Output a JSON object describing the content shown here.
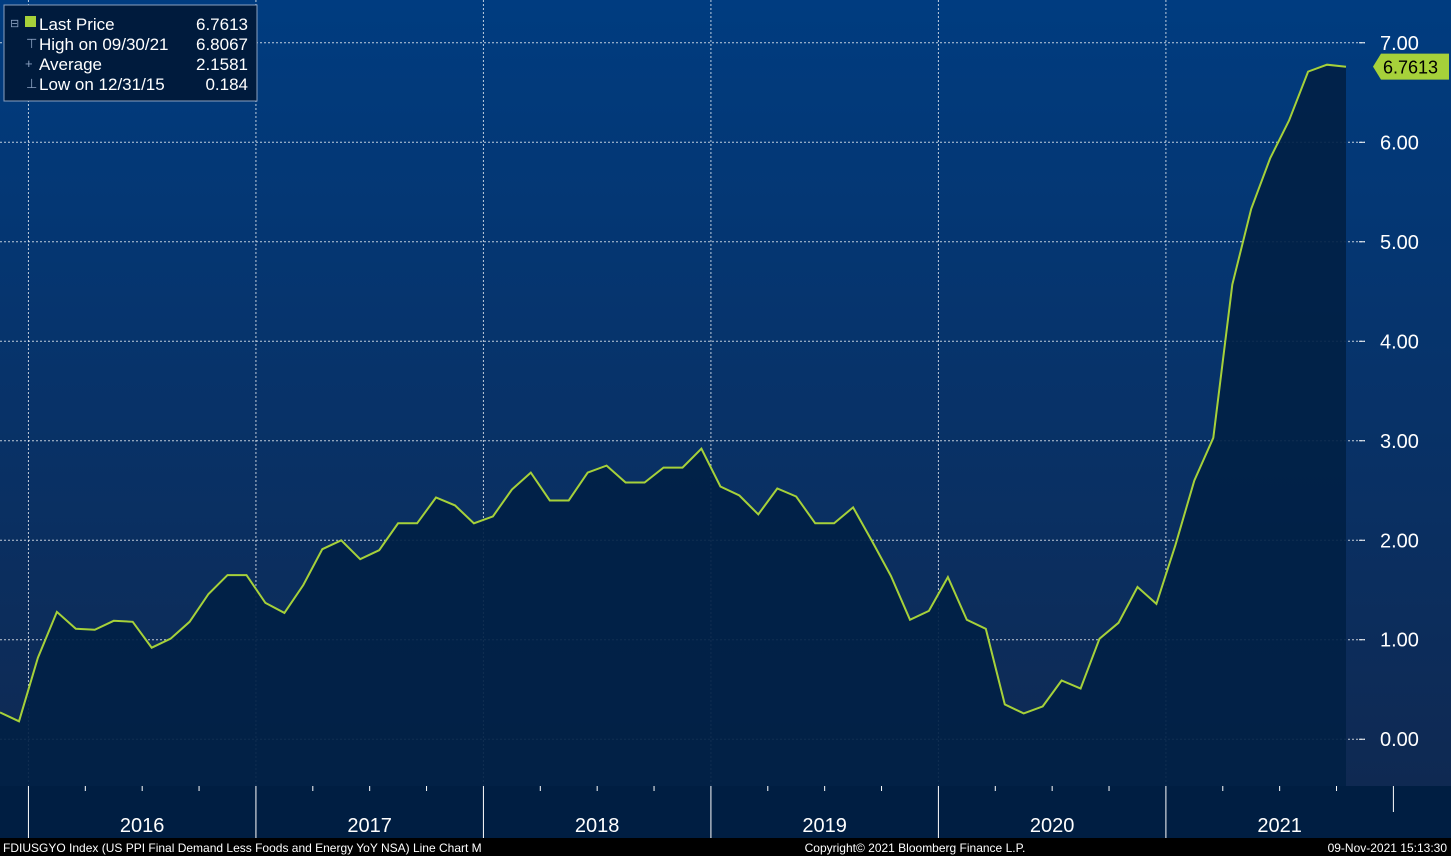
{
  "legend": {
    "items": [
      {
        "label": "Last Price",
        "value": "6.7613"
      },
      {
        "label": "High on 09/30/21",
        "value": "6.8067"
      },
      {
        "label": "Average",
        "value": "2.1581"
      },
      {
        "label": "Low on 12/31/15",
        "value": "0.184"
      }
    ]
  },
  "last_value_label": "6.7613",
  "footer": {
    "left": "FDIUSGYO Index (US PPI Final Demand Less Foods and Energy YoY NSA) Line Chart  M",
    "center": "Copyright© 2021 Bloomberg Finance L.P.",
    "right": "09-Nov-2021 15:13:30"
  },
  "colors": {
    "line": "#a6d13a",
    "last_label_bg": "#a6d13a",
    "plot_top": "#003c80",
    "plot_bottom": "#0f2952",
    "area_fill": "#012145",
    "axis_bg": "#001e42",
    "footer_bg": "#000000"
  },
  "chart_data": {
    "type": "area",
    "title": "",
    "xlabel": "",
    "ylabel": "",
    "frequency": "monthly",
    "x_start": "2015-11",
    "x_end": "2021-10",
    "x_tick_labels": [
      "2016",
      "2017",
      "2018",
      "2019",
      "2020",
      "2021"
    ],
    "y_tick_labels": [
      "0.00",
      "1.00",
      "2.00",
      "3.00",
      "4.00",
      "5.00",
      "6.00",
      "7.00"
    ],
    "ylim": [
      -0.47,
      7.43
    ],
    "grid": true,
    "legend_position": "top-left",
    "series": [
      {
        "name": "Last Price",
        "values": [
          0.27,
          0.18,
          0.82,
          1.28,
          1.11,
          1.1,
          1.19,
          1.18,
          0.92,
          1.01,
          1.18,
          1.46,
          1.65,
          1.65,
          1.37,
          1.27,
          1.55,
          1.91,
          2.0,
          1.81,
          1.9,
          2.17,
          2.17,
          2.43,
          2.35,
          2.17,
          2.24,
          2.51,
          2.68,
          2.4,
          2.4,
          2.68,
          2.75,
          2.58,
          2.58,
          2.73,
          2.73,
          2.92,
          2.54,
          2.45,
          2.26,
          2.52,
          2.44,
          2.17,
          2.17,
          2.33,
          1.99,
          1.64,
          1.2,
          1.29,
          1.63,
          1.2,
          1.11,
          0.35,
          0.26,
          0.33,
          0.59,
          0.51,
          1.01,
          1.17,
          1.53,
          1.36,
          1.95,
          2.6,
          3.03,
          4.57,
          5.33,
          5.84,
          6.22,
          6.71,
          6.78,
          6.76
        ]
      }
    ]
  }
}
